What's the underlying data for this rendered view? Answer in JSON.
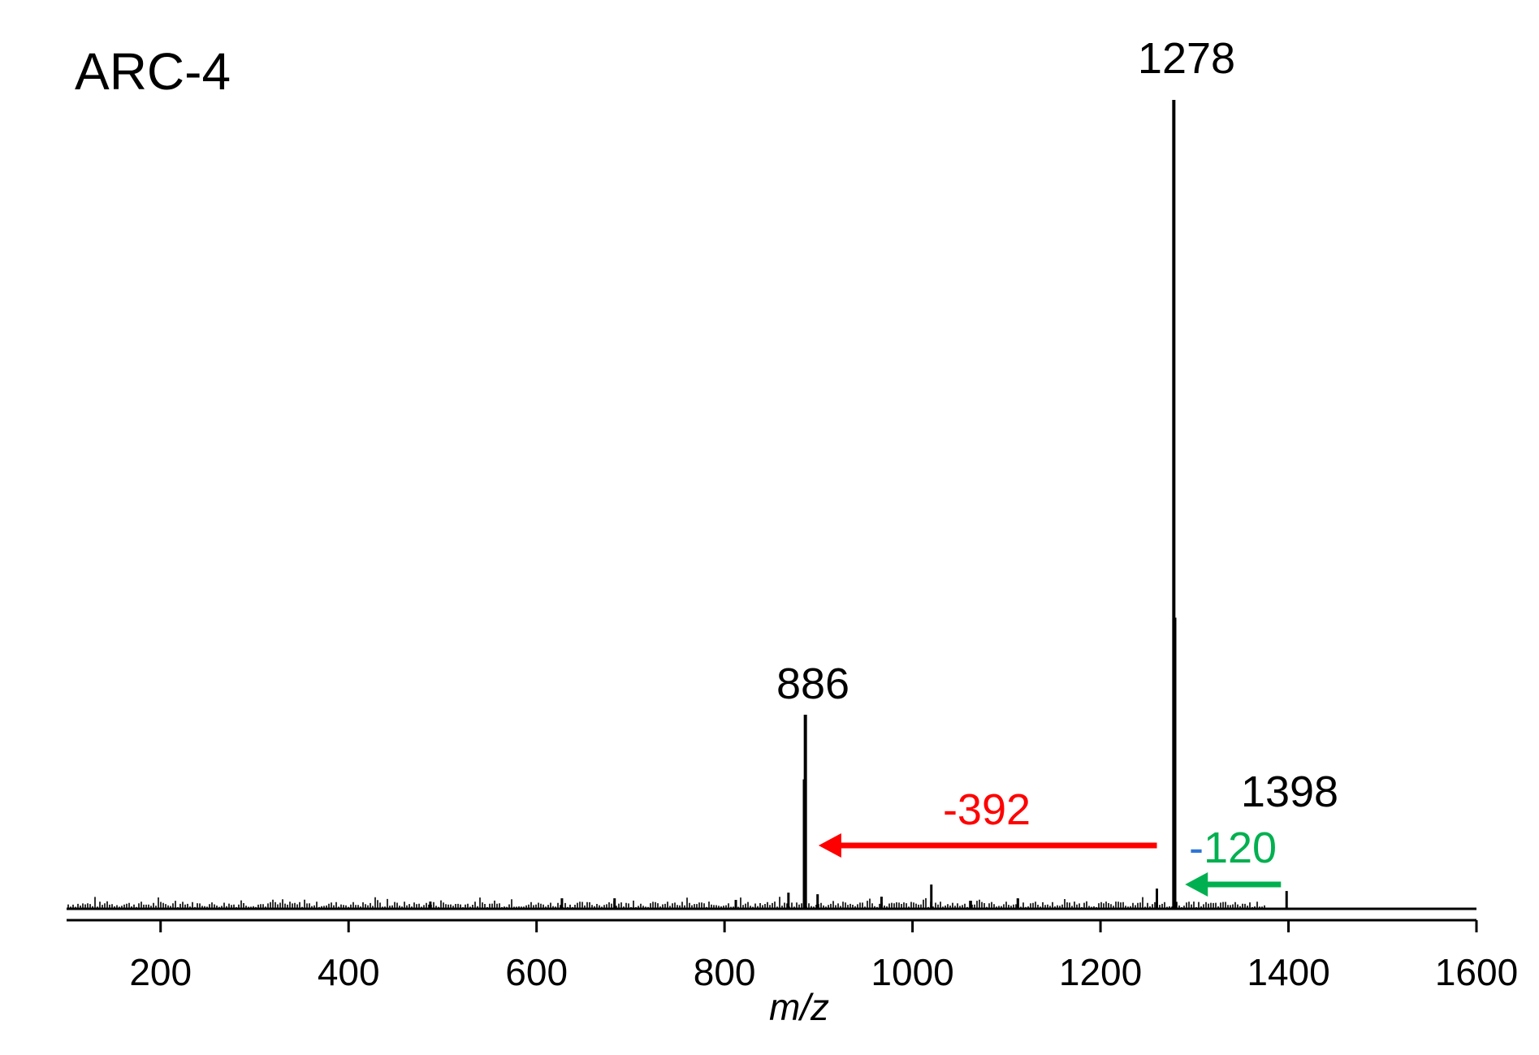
{
  "chart_data": {
    "type": "bar",
    "title": "ARC-4",
    "xlabel": "m/z",
    "ylabel": "",
    "xlim": [
      100,
      1600
    ],
    "ylim": [
      0,
      100
    ],
    "x_ticks": [
      "200",
      "400",
      "600",
      "800",
      "1000",
      "1200",
      "1400",
      "1600"
    ],
    "grid": false,
    "legend": "none",
    "colors": {
      "line": "#000000",
      "red": "#ff0000",
      "green": "#00b050",
      "blue": "#2e75d6"
    },
    "peaks": [
      {
        "x": 1278,
        "y": 100
      },
      {
        "x": 1279,
        "y": 36
      },
      {
        "x": 886,
        "y": 24
      },
      {
        "x": 885,
        "y": 16
      },
      {
        "x": 1398,
        "y": 2.2
      },
      {
        "x": 1260,
        "y": 2.5
      },
      {
        "x": 1020,
        "y": 3
      },
      {
        "x": 868,
        "y": 2
      },
      {
        "x": 899,
        "y": 1.8
      },
      {
        "x": 967,
        "y": 1.5
      },
      {
        "x": 1112,
        "y": 1.3
      },
      {
        "x": 627,
        "y": 1.3
      },
      {
        "x": 683,
        "y": 1.3
      },
      {
        "x": 812,
        "y": 1.1
      },
      {
        "x": 1062,
        "y": 1.0
      },
      {
        "x": 487,
        "y": 0.9
      }
    ],
    "peak_labels": [
      {
        "text": "1278",
        "x": 1278
      },
      {
        "text": "886",
        "x": 886
      },
      {
        "text": "1398",
        "x": 1398
      }
    ],
    "annotations": [
      {
        "text": "-392",
        "from": 1260,
        "to": 900,
        "color": "red"
      },
      {
        "text": "-120",
        "dash": "-",
        "number": "120",
        "from": 1392,
        "to": 1290,
        "color": "green"
      }
    ]
  }
}
